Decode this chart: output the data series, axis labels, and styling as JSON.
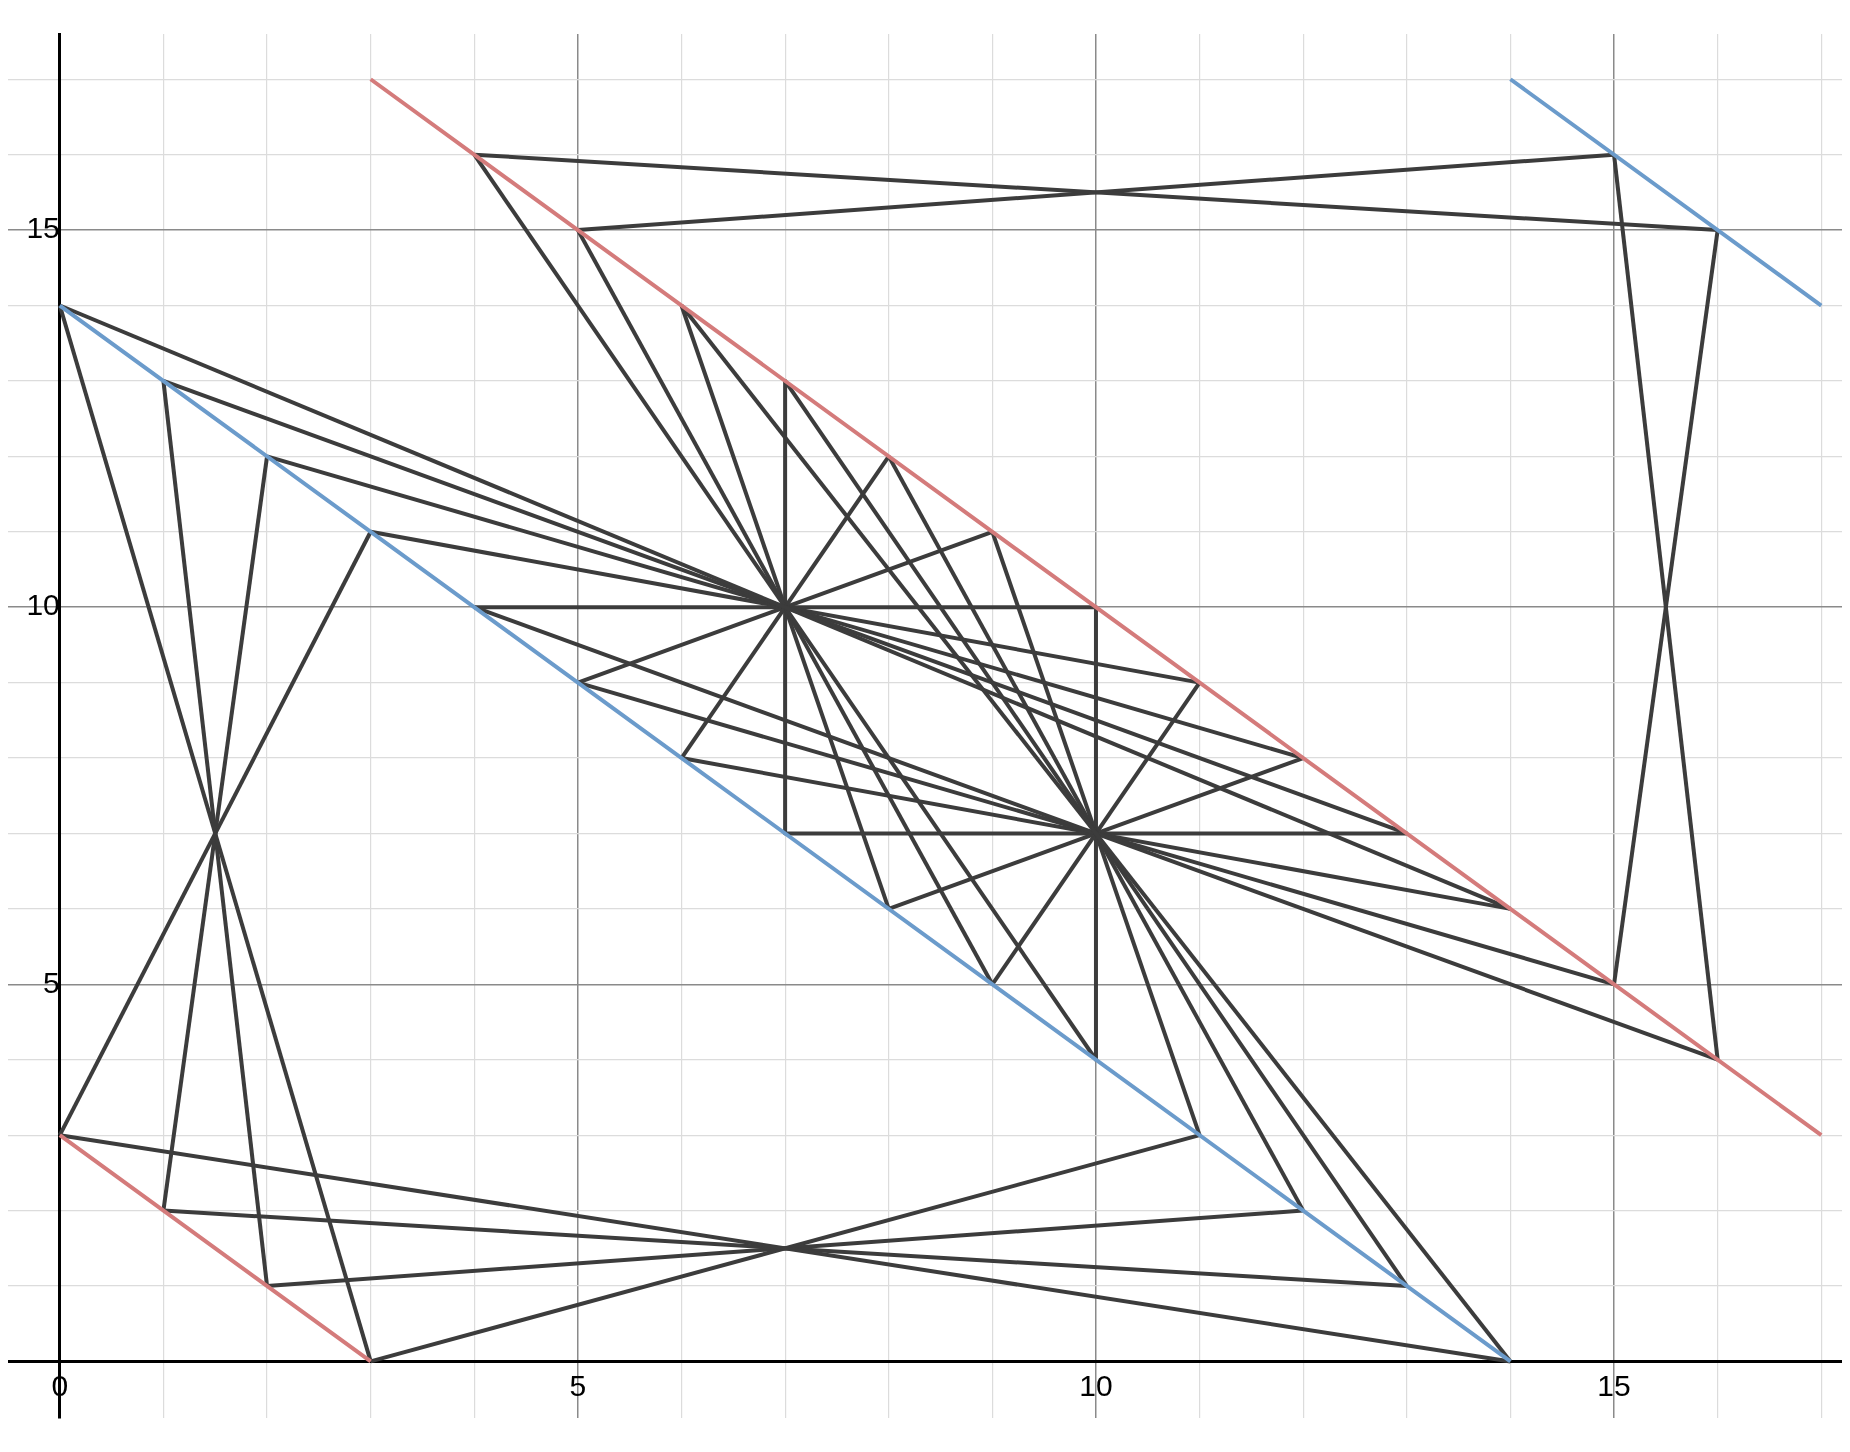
{
  "chart_data": {
    "type": "line",
    "xlim": [
      -0.5,
      17.2
    ],
    "ylim": [
      -0.75,
      17.6
    ],
    "xticks": [
      {
        "value": 0,
        "label": "0"
      },
      {
        "value": 1,
        "label": null
      },
      {
        "value": 2,
        "label": null
      },
      {
        "value": 3,
        "label": null
      },
      {
        "value": 4,
        "label": null
      },
      5,
      {
        "value": 6,
        "label": null
      },
      {
        "value": 7,
        "label": null
      },
      {
        "value": 8,
        "label": null
      },
      {
        "value": 9,
        "label": null
      },
      10,
      {
        "value": 11,
        "label": null
      },
      {
        "value": 12,
        "label": null
      },
      {
        "value": 13,
        "label": null
      },
      {
        "value": 14,
        "label": null
      },
      15,
      {
        "value": 16,
        "label": null
      },
      {
        "value": 17,
        "label": null
      }
    ],
    "yticks": [
      {
        "value": 0,
        "label": null
      },
      {
        "value": 1,
        "label": null
      },
      {
        "value": 2,
        "label": null
      },
      {
        "value": 3,
        "label": null
      },
      {
        "value": 4,
        "label": null
      },
      5,
      {
        "value": 6,
        "label": null
      },
      {
        "value": 7,
        "label": null
      },
      {
        "value": 8,
        "label": null
      },
      {
        "value": 9,
        "label": null
      },
      10,
      {
        "value": 11,
        "label": null
      },
      {
        "value": 12,
        "label": null
      },
      {
        "value": 13,
        "label": null
      },
      {
        "value": 14,
        "label": null
      },
      15,
      {
        "value": 16,
        "label": null
      },
      {
        "value": 17,
        "label": null
      }
    ],
    "grid": true,
    "legend": false,
    "marker": "none",
    "line_style": "solid",
    "series": [
      {
        "type": "line",
        "color": "#d47b7b",
        "x": [
          3,
          17,
          null,
          0,
          3
        ],
        "values": [
          17,
          3,
          null,
          3,
          0
        ]
      },
      {
        "type": "line",
        "color": "#6b9bcb",
        "x": [
          0,
          14,
          null,
          14,
          17
        ],
        "values": [
          14,
          0,
          null,
          17,
          14
        ]
      },
      {
        "type": "line",
        "color": "#3c3c3c",
        "x": [
          0,
          14
        ],
        "values": [
          14,
          6
        ]
      },
      {
        "type": "line",
        "color": "#3c3c3c",
        "x": [
          1,
          13
        ],
        "values": [
          13,
          7
        ]
      },
      {
        "type": "line",
        "color": "#3c3c3c",
        "x": [
          2,
          12
        ],
        "values": [
          12,
          8
        ]
      },
      {
        "type": "line",
        "color": "#3c3c3c",
        "x": [
          3,
          11
        ],
        "values": [
          11,
          9
        ]
      },
      {
        "type": "line",
        "color": "#3c3c3c",
        "x": [
          4,
          10
        ],
        "values": [
          16,
          4
        ]
      },
      {
        "type": "line",
        "color": "#3c3c3c",
        "x": [
          5,
          9
        ],
        "values": [
          15,
          5
        ]
      },
      {
        "type": "line",
        "color": "#3c3c3c",
        "x": [
          6,
          8
        ],
        "values": [
          14,
          6
        ]
      },
      {
        "type": "line",
        "color": "#3c3c3c",
        "x": [
          7,
          7
        ],
        "values": [
          13,
          7
        ]
      },
      {
        "type": "line",
        "color": "#3c3c3c",
        "x": [
          6,
          8
        ],
        "values": [
          8,
          12
        ]
      },
      {
        "type": "line",
        "color": "#3c3c3c",
        "x": [
          5,
          9
        ],
        "values": [
          9,
          11
        ]
      },
      {
        "type": "line",
        "color": "#3c3c3c",
        "x": [
          4,
          10
        ],
        "values": [
          10,
          10
        ]
      },
      {
        "type": "line",
        "color": "#3c3c3c",
        "x": [
          6,
          14
        ],
        "values": [
          14,
          0
        ]
      },
      {
        "type": "line",
        "color": "#3c3c3c",
        "x": [
          7,
          13
        ],
        "values": [
          13,
          1
        ]
      },
      {
        "type": "line",
        "color": "#3c3c3c",
        "x": [
          8,
          12
        ],
        "values": [
          12,
          2
        ]
      },
      {
        "type": "line",
        "color": "#3c3c3c",
        "x": [
          9,
          11
        ],
        "values": [
          11,
          3
        ]
      },
      {
        "type": "line",
        "color": "#3c3c3c",
        "x": [
          4,
          16
        ],
        "values": [
          10,
          4
        ]
      },
      {
        "type": "line",
        "color": "#3c3c3c",
        "x": [
          5,
          15
        ],
        "values": [
          9,
          5
        ]
      },
      {
        "type": "line",
        "color": "#3c3c3c",
        "x": [
          6,
          14
        ],
        "values": [
          8,
          6
        ]
      },
      {
        "type": "line",
        "color": "#3c3c3c",
        "x": [
          7,
          13
        ],
        "values": [
          7,
          7
        ]
      },
      {
        "type": "line",
        "color": "#3c3c3c",
        "x": [
          8,
          12
        ],
        "values": [
          6,
          8
        ]
      },
      {
        "type": "line",
        "color": "#3c3c3c",
        "x": [
          9,
          11
        ],
        "values": [
          5,
          9
        ]
      },
      {
        "type": "line",
        "color": "#3c3c3c",
        "x": [
          10,
          10
        ],
        "values": [
          10,
          4
        ]
      },
      {
        "type": "line",
        "color": "#3c3c3c",
        "x": [
          0,
          3
        ],
        "values": [
          14,
          0
        ]
      },
      {
        "type": "line",
        "color": "#3c3c3c",
        "x": [
          1,
          2
        ],
        "values": [
          13,
          1
        ]
      },
      {
        "type": "line",
        "color": "#3c3c3c",
        "x": [
          1,
          2
        ],
        "values": [
          2,
          12
        ]
      },
      {
        "type": "line",
        "color": "#3c3c3c",
        "x": [
          0,
          3
        ],
        "values": [
          3,
          11
        ]
      },
      {
        "type": "line",
        "color": "#3c3c3c",
        "x": [
          0,
          14
        ],
        "values": [
          3,
          0
        ]
      },
      {
        "type": "line",
        "color": "#3c3c3c",
        "x": [
          1,
          13
        ],
        "values": [
          2,
          1
        ]
      },
      {
        "type": "line",
        "color": "#3c3c3c",
        "x": [
          2,
          12
        ],
        "values": [
          1,
          2
        ]
      },
      {
        "type": "line",
        "color": "#3c3c3c",
        "x": [
          3,
          11
        ],
        "values": [
          0,
          3
        ]
      },
      {
        "type": "line",
        "color": "#3c3c3c",
        "x": [
          4,
          16
        ],
        "values": [
          16,
          15
        ]
      },
      {
        "type": "line",
        "color": "#3c3c3c",
        "x": [
          5,
          15
        ],
        "values": [
          15,
          16
        ]
      },
      {
        "type": "line",
        "color": "#3c3c3c",
        "x": [
          15,
          16
        ],
        "values": [
          16,
          4
        ]
      },
      {
        "type": "line",
        "color": "#3c3c3c",
        "x": [
          15,
          16
        ],
        "values": [
          5,
          15
        ]
      }
    ]
  }
}
